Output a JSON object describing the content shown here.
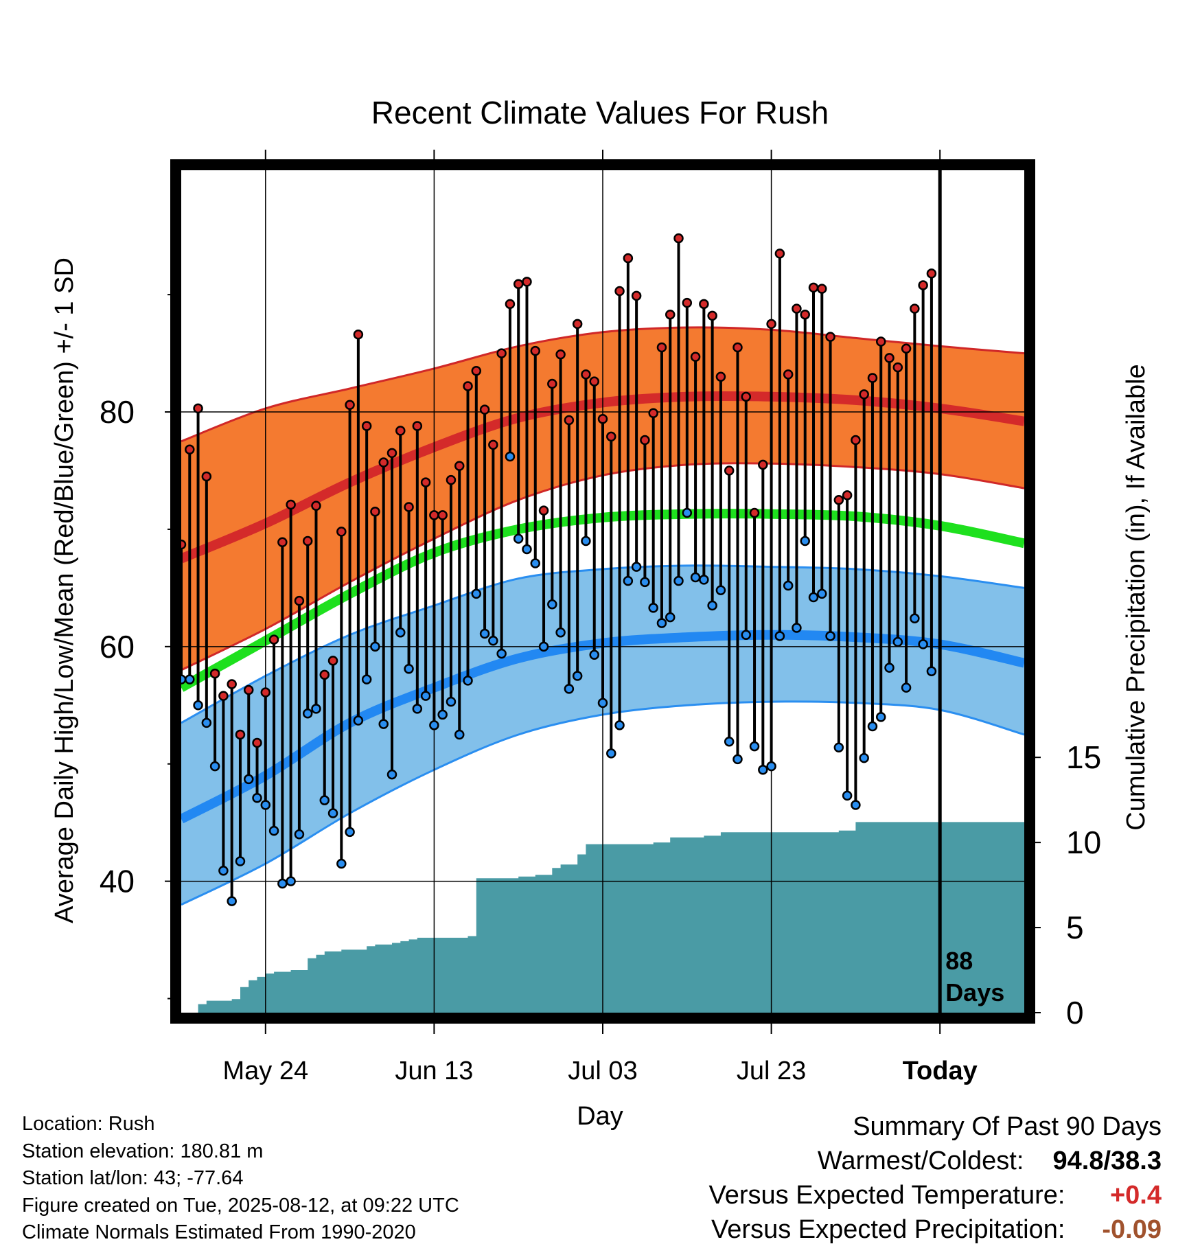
{
  "title": "Recent Climate Values For Rush",
  "chart_data": {
    "type": "line",
    "title": "Recent Climate Values For Rush",
    "xlabel": "Day",
    "ylabel": "Average Daily High/Low/Mean (Red/Blue/Green) +/- 1 SD",
    "y2label": "Cumulative Precipitation (in), If Available",
    "x_tick_labels": [
      "May 24",
      "Jun 13",
      "Jul 03",
      "Jul 23",
      "Today"
    ],
    "x_tick_days": [
      10,
      30,
      50,
      70,
      90
    ],
    "x_range_days": [
      0,
      100
    ],
    "ylim": [
      28.8,
      100.6
    ],
    "y_ticks": [
      40,
      60,
      80
    ],
    "y_minor_ticks": [
      30,
      50,
      70,
      90
    ],
    "y2lim": [
      0,
      49.5
    ],
    "y2_ticks": [
      0,
      5,
      10,
      15
    ],
    "grid": true,
    "today_marker_label": "88\nDays",
    "normals": {
      "x": [
        0,
        10,
        20,
        30,
        40,
        50,
        60,
        70,
        80,
        90,
        100
      ],
      "high_mean": [
        67.5,
        70.5,
        74.0,
        77.0,
        79.5,
        80.8,
        81.3,
        81.3,
        81.0,
        80.3,
        79.2
      ],
      "high_sd_upper": [
        77.5,
        80.3,
        82.0,
        83.7,
        85.6,
        86.8,
        87.2,
        87.0,
        86.3,
        85.6,
        85.0
      ],
      "high_sd_lower": [
        58.0,
        61.5,
        65.5,
        69.2,
        72.5,
        74.6,
        75.5,
        75.6,
        75.3,
        74.7,
        73.5
      ],
      "mean": [
        56.5,
        60.5,
        64.5,
        68.0,
        70.0,
        71.0,
        71.3,
        71.3,
        71.1,
        70.3,
        68.8
      ],
      "low_mean": [
        45.3,
        49.0,
        53.5,
        56.5,
        59.0,
        60.3,
        60.8,
        61.0,
        60.8,
        60.2,
        58.6
      ],
      "low_sd_upper": [
        53.5,
        57.5,
        61.0,
        63.5,
        65.8,
        66.6,
        66.9,
        66.8,
        66.6,
        66.0,
        65.0
      ],
      "low_sd_lower": [
        38.0,
        41.5,
        45.8,
        49.5,
        52.5,
        54.2,
        55.0,
        55.3,
        55.2,
        54.6,
        52.5
      ]
    },
    "series": [
      {
        "name": "High",
        "values": [
          68.7,
          76.8,
          80.3,
          74.5,
          57.7,
          55.8,
          56.8,
          52.5,
          56.3,
          51.8,
          56.1,
          60.6,
          68.9,
          72.1,
          63.9,
          69.0,
          72.0,
          57.6,
          58.8,
          69.8,
          80.6,
          86.6,
          78.8,
          71.5,
          75.7,
          76.5,
          78.4,
          71.9,
          78.8,
          74.0,
          71.2,
          71.2,
          74.2,
          75.4,
          82.2,
          83.5,
          80.2,
          77.2,
          85.0,
          89.2,
          90.9,
          91.1,
          85.2,
          71.6,
          82.4,
          84.9,
          79.3,
          87.5,
          83.2,
          82.6,
          79.4,
          77.9,
          90.3,
          93.1,
          89.9,
          77.6,
          79.9,
          85.5,
          88.3,
          94.8,
          89.3,
          84.7,
          89.2,
          88.2,
          83.0,
          75.0,
          85.5,
          81.3,
          71.4,
          75.5,
          87.5,
          93.5,
          83.2,
          88.8,
          88.3,
          90.6,
          90.5,
          86.4,
          72.5,
          72.9,
          77.6,
          81.5,
          82.9,
          86.0,
          84.6,
          83.8,
          85.4,
          88.8,
          90.8,
          91.8
        ]
      },
      {
        "name": "Low",
        "values": [
          57.2,
          57.2,
          55.0,
          53.5,
          49.8,
          40.9,
          38.3,
          41.7,
          48.7,
          47.1,
          46.5,
          44.3,
          39.8,
          40.0,
          44.0,
          54.3,
          54.7,
          46.9,
          45.8,
          41.5,
          44.2,
          53.7,
          57.2,
          60.0,
          53.4,
          49.1,
          61.2,
          58.1,
          54.7,
          55.8,
          53.3,
          54.2,
          55.3,
          52.5,
          57.1,
          64.5,
          61.1,
          60.5,
          59.4,
          76.2,
          69.2,
          68.3,
          67.1,
          60.0,
          63.6,
          61.2,
          56.4,
          57.5,
          69.0,
          59.3,
          55.2,
          50.9,
          53.3,
          65.6,
          66.8,
          65.5,
          63.3,
          62.0,
          62.5,
          65.6,
          71.4,
          65.9,
          65.7,
          63.5,
          64.8,
          51.9,
          50.4,
          61.0,
          51.5,
          49.5,
          49.8,
          60.9,
          65.2,
          61.6,
          69.0,
          64.2,
          64.5,
          60.9,
          51.4,
          47.3,
          46.5,
          50.5,
          53.2,
          54.0,
          58.2,
          60.4,
          56.5,
          62.4,
          60.2,
          57.9
        ]
      }
    ],
    "precip": {
      "x": [
        2,
        3,
        6,
        7,
        8,
        9,
        10,
        11,
        12,
        13,
        14,
        15,
        16,
        17,
        18,
        19,
        22,
        23,
        25,
        26,
        27,
        28,
        34,
        35,
        40,
        42,
        44,
        45,
        47,
        48,
        56,
        58,
        62,
        64,
        70,
        78,
        80
      ],
      "y": [
        0.5,
        0.7,
        0.8,
        1.5,
        1.9,
        2.1,
        2.3,
        2.4,
        2.4,
        2.5,
        2.5,
        3.2,
        3.4,
        3.6,
        3.6,
        3.7,
        3.9,
        4.0,
        4.1,
        4.2,
        4.3,
        4.4,
        4.5,
        7.9,
        8.0,
        8.1,
        8.5,
        8.7,
        9.3,
        9.9,
        10.0,
        10.3,
        10.4,
        10.6,
        10.6,
        10.7,
        11.2
      ],
      "end_day": 102
    },
    "colors": {
      "high_band": "#f47a30",
      "high_band_edge": "#d02828",
      "high_mean_line": "#d42a2a",
      "mean_line": "#1ee01e",
      "low_band": "#82c0ea",
      "low_band_edge": "#2a8ef0",
      "low_mean_line": "#2288f2",
      "high_dot": "#d42a2a",
      "low_dot": "#2a8ef0",
      "precip": "#4a9ba5",
      "warm_anomaly": "#d42a2a",
      "dry_anomaly": "#a0522d"
    }
  },
  "info": {
    "location": "Location: Rush",
    "elevation": "Station elevation: 180.81 m",
    "latlon": "Station lat/lon: 43; -77.64",
    "created": "Figure created on Tue, 2025-08-12, at 09:22 UTC",
    "normals": "Climate Normals Estimated From 1990-2020"
  },
  "summary": {
    "heading": "Summary Of Past 90 Days",
    "warm_cold_label": "Warmest/Coldest:",
    "warm_cold_value": "94.8/38.3",
    "temp_label": "Versus Expected Temperature:",
    "temp_value": "+0.4",
    "precip_label": "Versus Expected Precipitation:",
    "precip_value": "-0.09"
  }
}
